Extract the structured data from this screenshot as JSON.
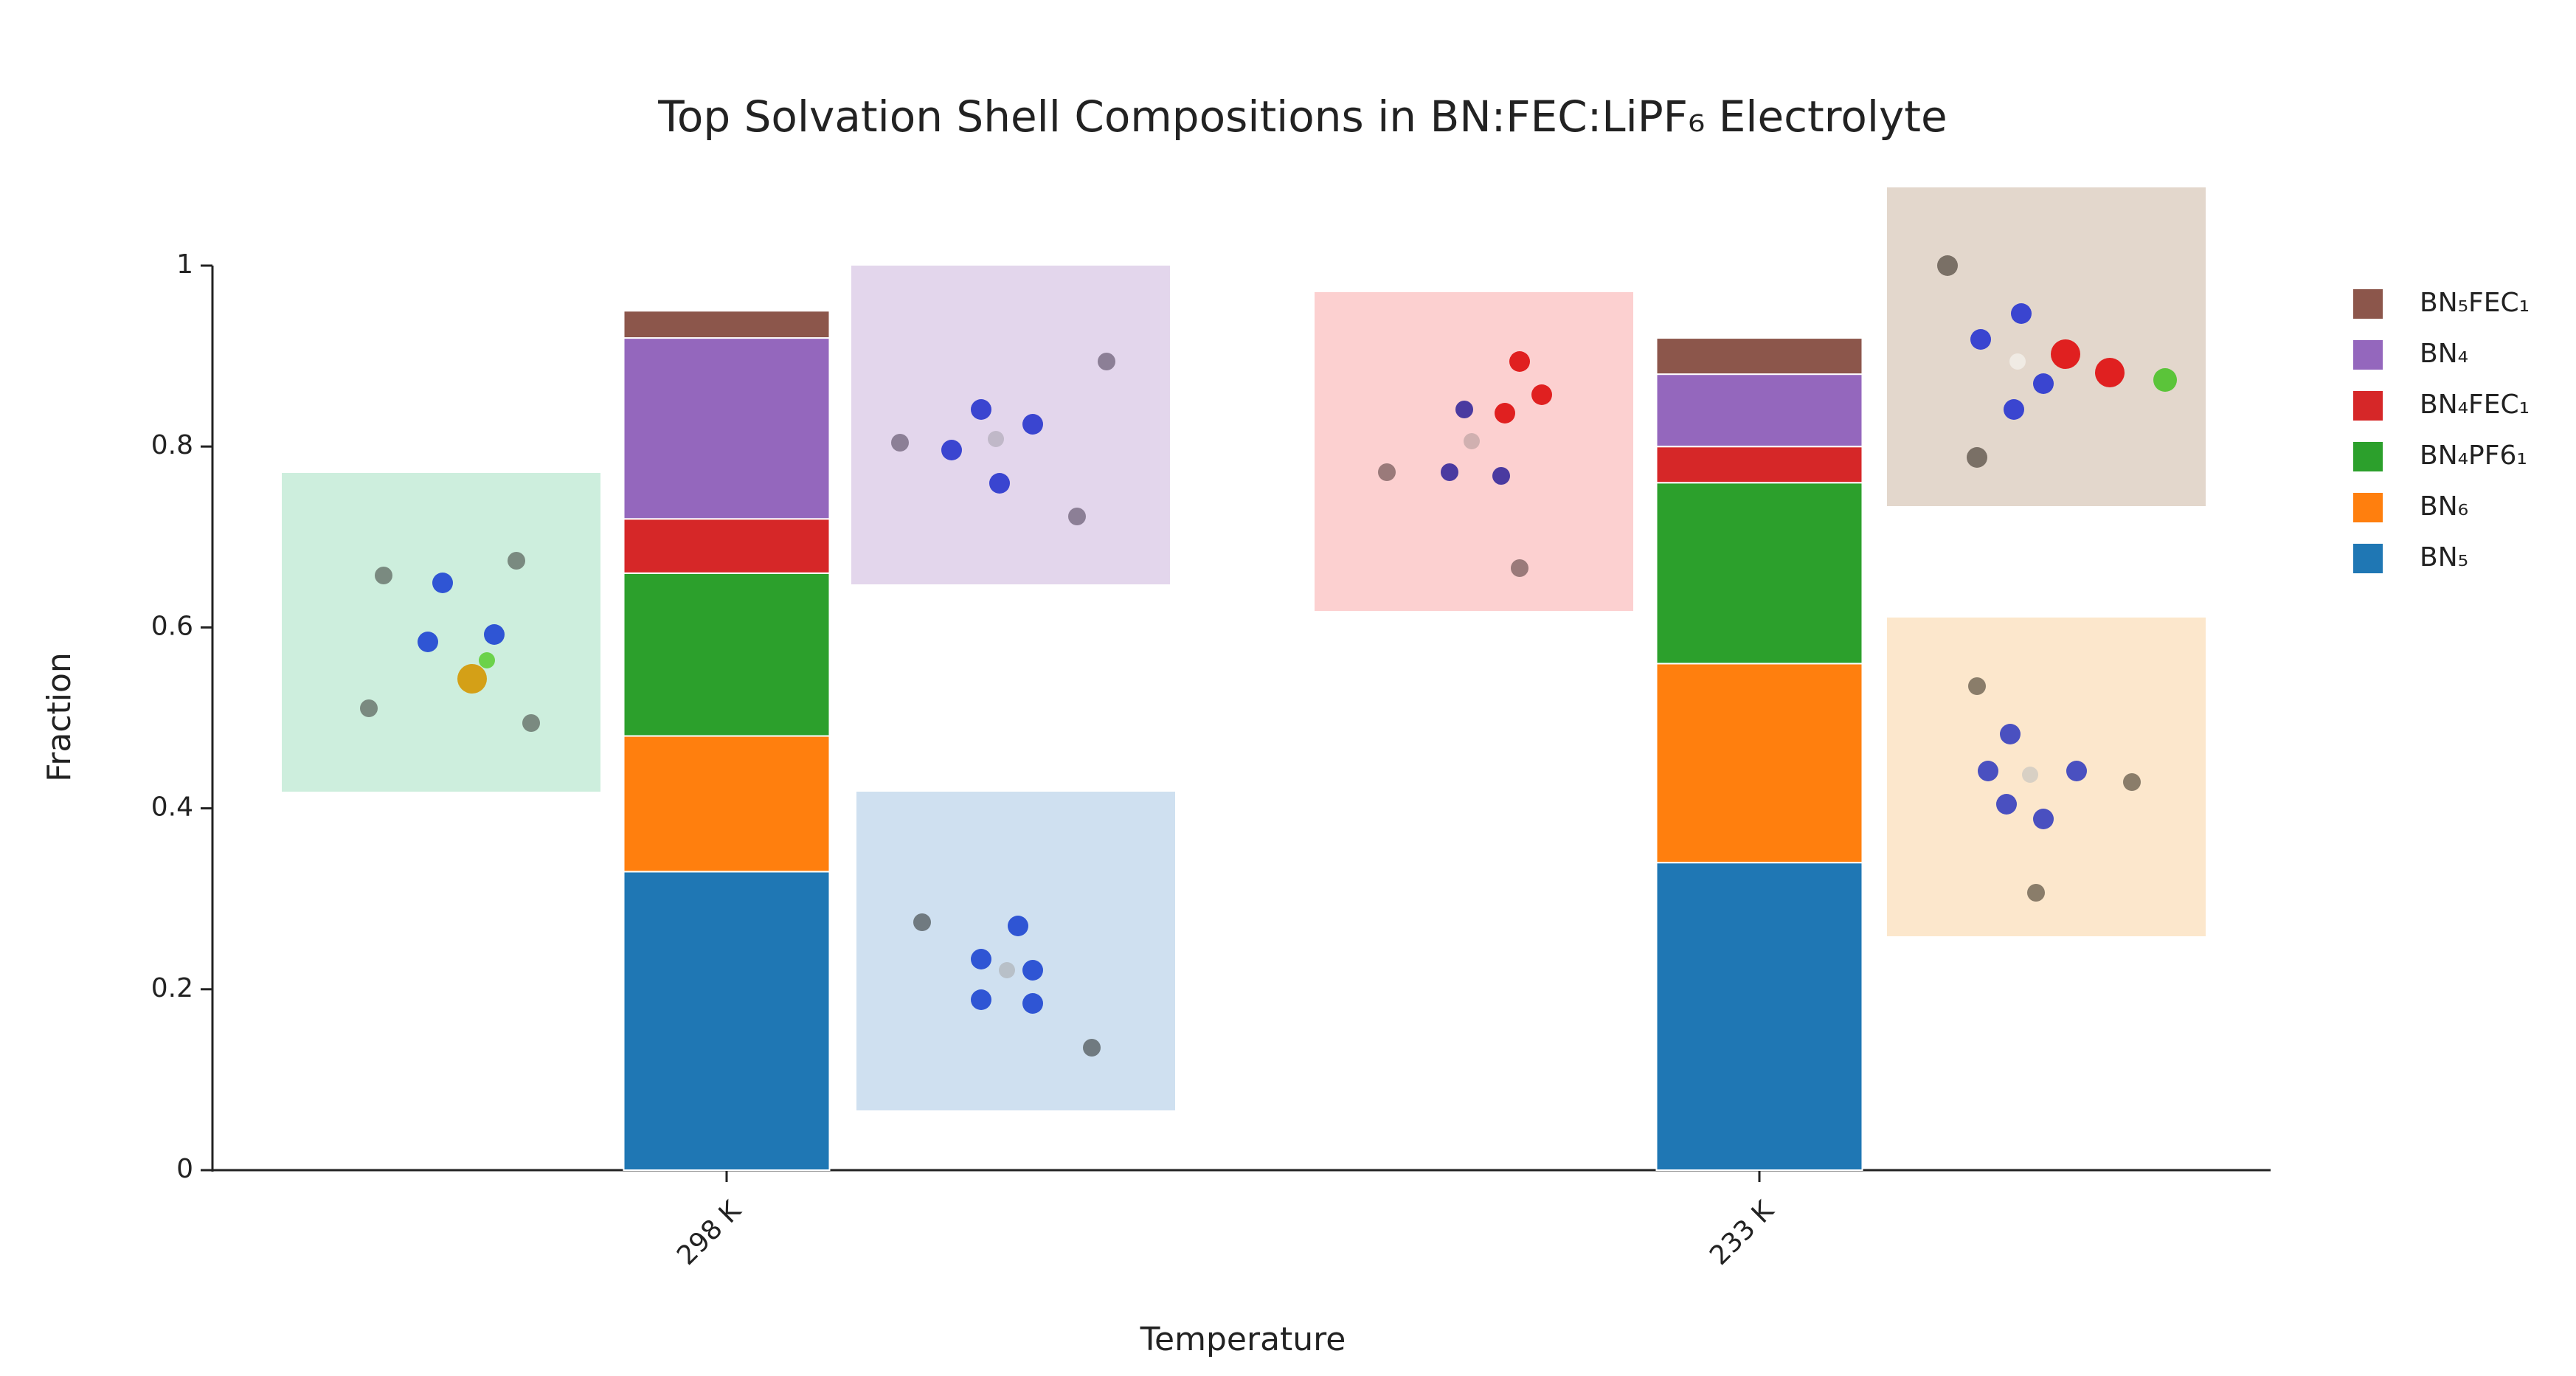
{
  "chart_data": {
    "type": "stacked-bar",
    "title": "Top Solvation Shell Compositions in BN:FEC:LiPF₆ Electrolyte",
    "x_label": "Temperature",
    "y_label": "Fraction",
    "categories": [
      "298 K",
      "233 K"
    ],
    "series": [
      {
        "name": "BN₅",
        "color": "#1f77b4",
        "values": [
          0.33,
          0.34
        ]
      },
      {
        "name": "BN₆",
        "color": "#ff7f0e",
        "values": [
          0.15,
          0.22
        ]
      },
      {
        "name": "BN₄PF6₁",
        "color": "#2ca02c",
        "values": [
          0.18,
          0.2
        ]
      },
      {
        "name": "BN₄FEC₁",
        "color": "#d62728",
        "values": [
          0.06,
          0.04
        ]
      },
      {
        "name": "BN₄",
        "color": "#9467bd",
        "values": [
          0.2,
          0.08
        ]
      },
      {
        "name": "BN₅FEC₁",
        "color": "#8c564b",
        "values": [
          0.03,
          0.04
        ]
      }
    ],
    "ylim": [
      0,
      1
    ],
    "yticks": [
      0,
      0.2,
      0.4,
      0.6,
      0.8,
      1
    ],
    "legend": "right"
  }
}
